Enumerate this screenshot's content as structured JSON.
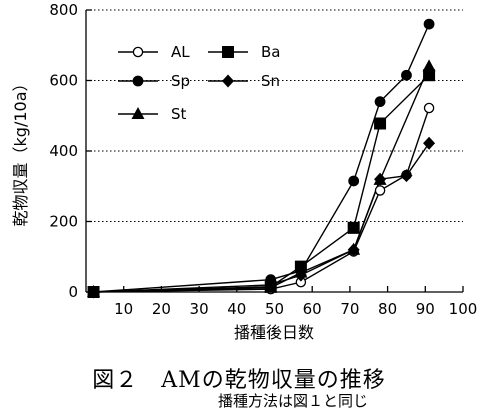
{
  "chart_data": {
    "type": "line",
    "xlabel": "播種後日数",
    "ylabel": "乾物収量（kg/10a）",
    "xlim": [
      0,
      100
    ],
    "ylim": [
      0,
      800
    ],
    "xticks": [
      10,
      20,
      30,
      40,
      50,
      60,
      70,
      80,
      90,
      100
    ],
    "yticks": [
      0,
      200,
      400,
      600,
      800
    ],
    "grid": "horizontal dotted at 200,400,600,800",
    "legend_position": "top-left",
    "series": [
      {
        "name": "AL",
        "marker": "open-circle",
        "x": [
          2,
          49,
          57,
          71,
          78,
          85,
          91
        ],
        "y": [
          0,
          8,
          28,
          115,
          288,
          332,
          522
        ]
      },
      {
        "name": "Ba",
        "marker": "filled-square",
        "x": [
          2,
          49,
          57,
          71,
          78,
          91
        ],
        "y": [
          0,
          15,
          72,
          182,
          478,
          615
        ]
      },
      {
        "name": "Sp",
        "marker": "filled-circle",
        "x": [
          2,
          49,
          57,
          71,
          78,
          85,
          91
        ],
        "y": [
          0,
          35,
          60,
          315,
          540,
          615,
          760
        ]
      },
      {
        "name": "Sn",
        "marker": "filled-diamond",
        "x": [
          2,
          49,
          57,
          71,
          78,
          85,
          91
        ],
        "y": [
          0,
          20,
          48,
          120,
          320,
          330,
          422
        ]
      },
      {
        "name": "St",
        "marker": "filled-triangle",
        "x": [
          2,
          49,
          57,
          71,
          78,
          91
        ],
        "y": [
          0,
          12,
          55,
          120,
          318,
          640
        ]
      }
    ]
  },
  "caption": {
    "title": "図２　AMの乾物収量の推移",
    "note": "播種方法は図１と同じ"
  }
}
